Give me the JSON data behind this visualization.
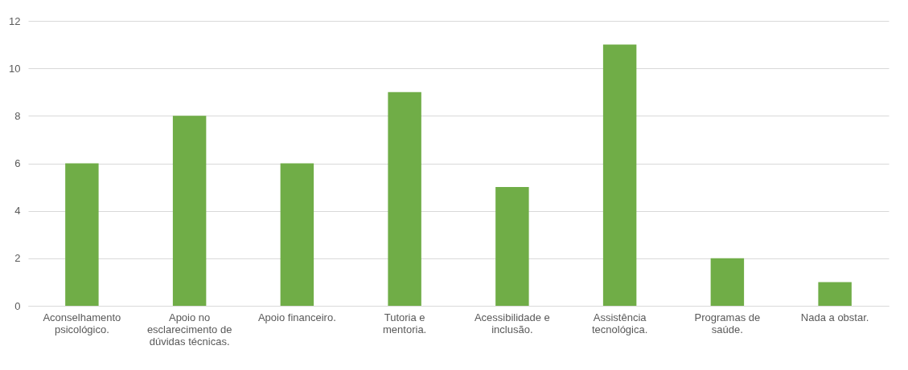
{
  "chart_data": {
    "type": "bar",
    "categories": [
      "Aconselhamento psicológico.",
      "Apoio no esclarecimento de dúvidas técnicas.",
      "Apoio financeiro.",
      "Tutoria e mentoria.",
      "Acessibilidade e inclusão.",
      "Assistência tecnológica.",
      "Programas de saúde.",
      "Nada a obstar."
    ],
    "values": [
      6,
      8,
      6,
      9,
      5,
      11,
      2,
      1
    ],
    "color": "#70ad47",
    "ylim": [
      0,
      12
    ],
    "yticks": [
      0,
      2,
      4,
      6,
      8,
      10,
      12
    ],
    "grid": "y"
  }
}
